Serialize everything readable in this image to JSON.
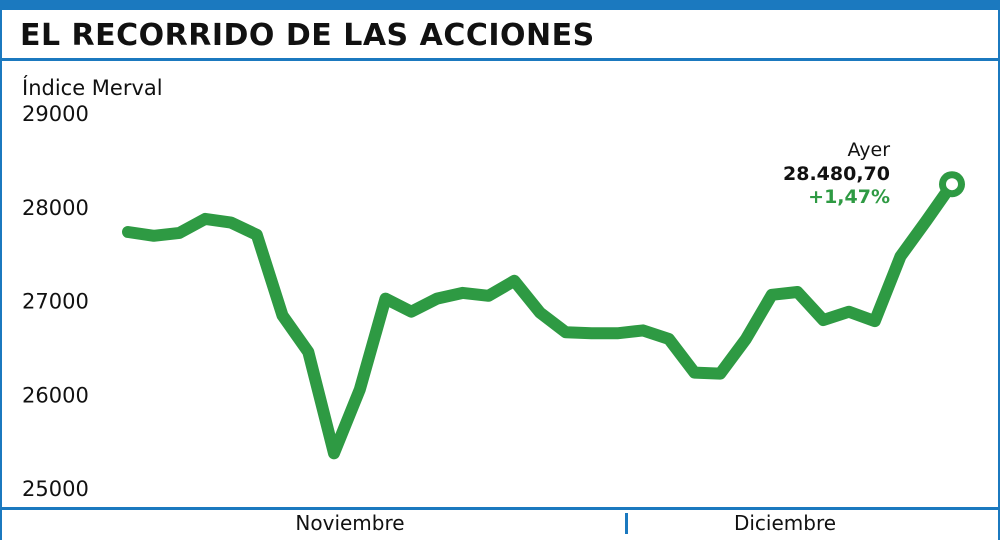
{
  "header": {
    "title": "EL RECORRIDO DE LAS ACCIONES"
  },
  "colors": {
    "accent": "#1b79bf",
    "series": "#2e9a43",
    "text": "#111111"
  },
  "chart_data": {
    "type": "line",
    "ylabel": "Índice Merval",
    "ylim": [
      25000,
      29000
    ],
    "yticks": [
      "29000",
      "28000",
      "27000",
      "26000",
      "25000"
    ],
    "xgroups": [
      "Noviembre",
      "Diciembre"
    ],
    "series": [
      {
        "values": [
          27880,
          27840,
          27870,
          28020,
          27980,
          27850,
          26990,
          26600,
          25520,
          26200,
          27170,
          27030,
          27170,
          27230,
          27200,
          27360,
          27020,
          26810,
          26800,
          26800,
          26830,
          26740,
          26380,
          26370,
          26740,
          27210,
          27240,
          26940,
          27030,
          26930,
          27620,
          28000,
          28390
        ]
      }
    ],
    "annotation": {
      "label": "Ayer",
      "value": "28.480,70",
      "change": "+1,47%"
    }
  }
}
